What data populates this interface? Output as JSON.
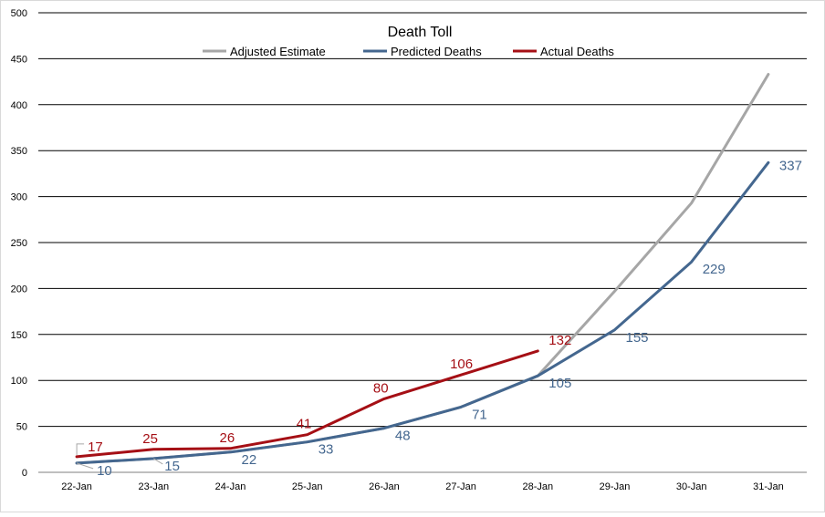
{
  "chart_data": {
    "type": "line",
    "title": "Death Toll",
    "categories": [
      "22-Jan",
      "23-Jan",
      "24-Jan",
      "25-Jan",
      "26-Jan",
      "27-Jan",
      "28-Jan",
      "29-Jan",
      "30-Jan",
      "31-Jan"
    ],
    "ylim": [
      0,
      500
    ],
    "yticks": [
      0,
      50,
      100,
      150,
      200,
      250,
      300,
      350,
      400,
      450,
      500
    ],
    "grid": true,
    "legend": "top-center",
    "series": [
      {
        "name": "Adjusted Estimate",
        "color": "#a6a6a6",
        "values": [
          10,
          15,
          22,
          33,
          48,
          71,
          105,
          197,
          293,
          433
        ],
        "labels_shown": false
      },
      {
        "name": "Predicted Deaths",
        "color": "#44678f",
        "values": [
          10,
          15,
          22,
          33,
          48,
          71,
          105,
          155,
          229,
          337
        ],
        "labels_shown": true
      },
      {
        "name": "Actual Deaths",
        "color": "#a50f15",
        "values": [
          17,
          25,
          26,
          41,
          80,
          106,
          132,
          null,
          null,
          null
        ],
        "labels_shown": true
      }
    ]
  }
}
